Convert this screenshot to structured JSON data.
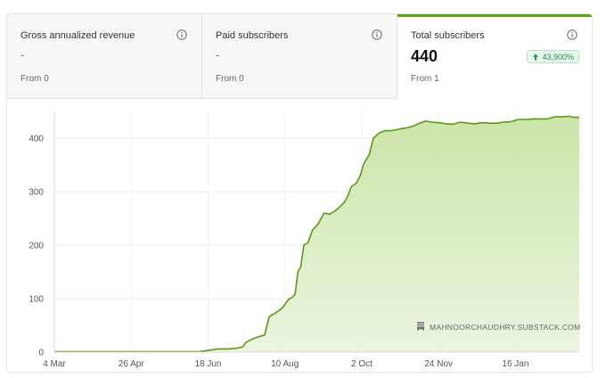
{
  "tabs": [
    {
      "label": "Gross annualized revenue",
      "value": "-",
      "from": "From 0"
    },
    {
      "label": "Paid subscribers",
      "value": "-",
      "from": "From 0"
    },
    {
      "label": "Total subscribers",
      "value": "440",
      "from": "From 1",
      "badge": "43,900%"
    }
  ],
  "colors": {
    "accent": "#5f9e1a",
    "line": "#5a9a18",
    "badge_text": "#2e8b4d",
    "badge_bg": "#e6f6ec"
  },
  "watermark": "MAHNOORCHAUDHRY.SUBSTACK.COM",
  "chart_data": {
    "type": "area",
    "title": "",
    "xlabel": "",
    "ylabel": "",
    "ylim": [
      0,
      450
    ],
    "y_ticks": [
      "0",
      "100",
      "200",
      "300",
      "400"
    ],
    "x_ticks": [
      "4 Mar",
      "26 Apr",
      "18 Jun",
      "10 Aug",
      "2 Oct",
      "24 Nov",
      "16 Jan"
    ],
    "x_tick_days": [
      0,
      53,
      106,
      159,
      212,
      265,
      318
    ],
    "x_max_day": 362,
    "grid": true,
    "series": [
      {
        "x_days": [
          0,
          60,
          90,
          100,
          108,
          113,
          120,
          125,
          130,
          132,
          137,
          140,
          145,
          148,
          150,
          152,
          156,
          158,
          160,
          162,
          164,
          166,
          168,
          170,
          172,
          175,
          178,
          182,
          186,
          190,
          194,
          197,
          200,
          202,
          205,
          208,
          211,
          213,
          215,
          217,
          220,
          224,
          228,
          232,
          236,
          240,
          244,
          248,
          252,
          256,
          260,
          265,
          270,
          275,
          280,
          285,
          290,
          295,
          300,
          305,
          310,
          315,
          320,
          325,
          330,
          335,
          340,
          345,
          350,
          355,
          358,
          362
        ],
        "values": [
          1,
          1,
          1,
          1,
          4,
          6,
          6,
          7,
          10,
          18,
          25,
          28,
          32,
          65,
          70,
          72,
          80,
          85,
          93,
          100,
          102,
          108,
          150,
          160,
          200,
          205,
          228,
          240,
          260,
          258,
          265,
          272,
          280,
          290,
          310,
          315,
          330,
          350,
          360,
          368,
          400,
          410,
          414,
          414,
          416,
          418,
          420,
          423,
          428,
          432,
          430,
          429,
          427,
          426,
          430,
          428,
          427,
          429,
          428,
          428,
          430,
          431,
          435,
          435,
          436,
          436,
          436,
          440,
          440,
          441,
          439,
          439
        ]
      }
    ]
  }
}
